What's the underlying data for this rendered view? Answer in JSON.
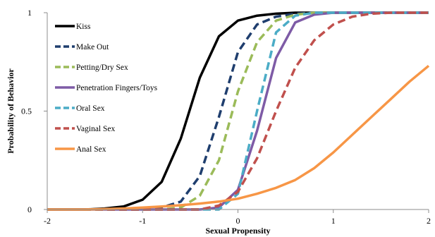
{
  "chart_data": {
    "type": "line",
    "title": "",
    "xlabel": "Sexual Propensity",
    "ylabel": "Probability of Behavior",
    "xlim": [
      -2,
      2
    ],
    "ylim": [
      0,
      1
    ],
    "x_ticks": [
      -2,
      -1,
      0,
      1,
      2
    ],
    "x_tick_labels": [
      "-2",
      "-1",
      "0",
      "1",
      "2"
    ],
    "y_ticks": [
      0,
      0.5,
      1
    ],
    "y_tick_labels": [
      "0",
      "0.5",
      "1"
    ],
    "grid": false,
    "legend_position": "top-left",
    "x": [
      -2.0,
      -1.8,
      -1.6,
      -1.4,
      -1.2,
      -1.0,
      -0.8,
      -0.6,
      -0.4,
      -0.2,
      0.0,
      0.2,
      0.4,
      0.6,
      0.8,
      1.0,
      1.2,
      1.4,
      1.6,
      1.8,
      2.0
    ],
    "series": [
      {
        "name": "Kiss",
        "color": "#000000",
        "dash": "solid",
        "values": [
          0.0,
          0.0,
          0.0,
          0.005,
          0.015,
          0.05,
          0.14,
          0.36,
          0.67,
          0.88,
          0.96,
          0.985,
          0.995,
          1.0,
          1.0,
          1.0,
          1.0,
          1.0,
          1.0,
          1.0,
          1.0
        ]
      },
      {
        "name": "Make Out",
        "color": "#1f3e6e",
        "dash": "dashed",
        "values": [
          0.0,
          0.0,
          0.0,
          0.0,
          0.0,
          0.0,
          0.01,
          0.04,
          0.17,
          0.47,
          0.8,
          0.94,
          0.98,
          0.995,
          1.0,
          1.0,
          1.0,
          1.0,
          1.0,
          1.0,
          1.0
        ]
      },
      {
        "name": "Petting/Dry Sex",
        "color": "#9bbb59",
        "dash": "dashed",
        "values": [
          0.0,
          0.0,
          0.0,
          0.0,
          0.0,
          0.0,
          0.0,
          0.01,
          0.07,
          0.25,
          0.6,
          0.85,
          0.96,
          0.99,
          1.0,
          1.0,
          1.0,
          1.0,
          1.0,
          1.0,
          1.0
        ]
      },
      {
        "name": "Penetration Fingers/Toys",
        "color": "#7e5ba6",
        "dash": "solid",
        "values": [
          0.0,
          0.0,
          0.0,
          0.0,
          0.0,
          0.0,
          0.0,
          0.0,
          0.0,
          0.01,
          0.1,
          0.4,
          0.77,
          0.95,
          0.99,
          1.0,
          1.0,
          1.0,
          1.0,
          1.0,
          1.0
        ]
      },
      {
        "name": "Oral Sex",
        "color": "#4bacc6",
        "dash": "dashed",
        "values": [
          0.0,
          0.0,
          0.0,
          0.0,
          0.0,
          0.0,
          0.0,
          0.0,
          0.0,
          0.0,
          0.08,
          0.5,
          0.9,
          0.985,
          1.0,
          1.0,
          1.0,
          1.0,
          1.0,
          1.0,
          1.0
        ]
      },
      {
        "name": "Vaginal Sex",
        "color": "#c0504d",
        "dash": "dashed",
        "values": [
          0.0,
          0.0,
          0.0,
          0.0,
          0.0,
          0.0,
          0.0,
          0.0,
          0.0,
          0.02,
          0.09,
          0.26,
          0.5,
          0.72,
          0.86,
          0.94,
          0.98,
          0.995,
          1.0,
          1.0,
          1.0
        ]
      },
      {
        "name": "Anal Sex",
        "color": "#f79646",
        "dash": "solid",
        "values": [
          0.0,
          0.0,
          0.0,
          0.002,
          0.005,
          0.01,
          0.015,
          0.022,
          0.03,
          0.04,
          0.055,
          0.08,
          0.11,
          0.15,
          0.21,
          0.29,
          0.38,
          0.47,
          0.56,
          0.65,
          0.73
        ]
      }
    ]
  }
}
